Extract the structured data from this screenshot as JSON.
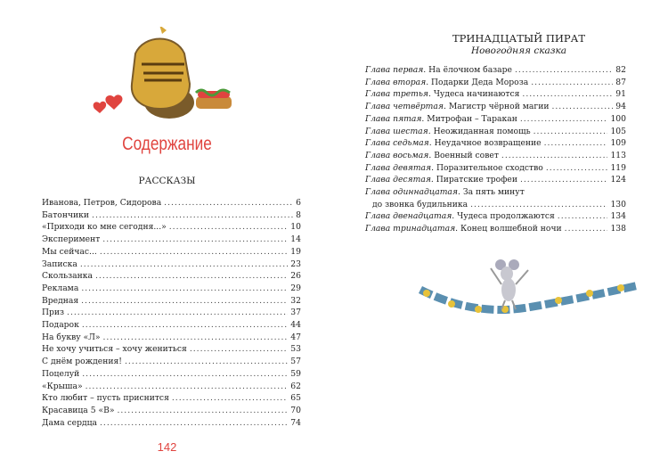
{
  "left_page": {
    "heading": "Содержание",
    "section_title": "РАССКАЗЫ",
    "page_number": "142",
    "entries": [
      {
        "title": "Иванова, Петров, Сидорова",
        "page": "6"
      },
      {
        "title": "Батончики",
        "page": "8"
      },
      {
        "title": "«Приходи ко мне сегодня...»",
        "page": "10"
      },
      {
        "title": "Эксперимент",
        "page": "14"
      },
      {
        "title": "Мы сейчас...",
        "page": "19"
      },
      {
        "title": "Записка",
        "page": "23"
      },
      {
        "title": "Скользанка",
        "page": "26"
      },
      {
        "title": "Реклама",
        "page": "29"
      },
      {
        "title": "Вредная",
        "page": "32"
      },
      {
        "title": "Приз",
        "page": "37"
      },
      {
        "title": "Подарок",
        "page": "44"
      },
      {
        "title": "На букву «Л»",
        "page": "47"
      },
      {
        "title": "Не хочу учиться – хочу жениться",
        "page": "53"
      },
      {
        "title": "С днём рождения!",
        "page": "57"
      },
      {
        "title": "Поцелуй",
        "page": "59"
      },
      {
        "title": "«Крыша»",
        "page": "62"
      },
      {
        "title": "Кто любит – пусть приснится",
        "page": "65"
      },
      {
        "title": "Красавица 5 «В»",
        "page": "70"
      },
      {
        "title": "Дама сердца",
        "page": "74"
      }
    ],
    "illustration": "knight-helmet-hearts-sandwich"
  },
  "right_page": {
    "title": "ТРИНАДЦАТЫЙ ПИРАТ",
    "subtitle": "Новогодняя сказка",
    "chapters": [
      {
        "label": "Глава первая.",
        "title": "На ёлочном базаре",
        "page": "82"
      },
      {
        "label": "Глава вторая.",
        "title": "Подарки Деда Мороза",
        "page": "87"
      },
      {
        "label": "Глава третья.",
        "title": "Чудеса начинаются",
        "page": "91"
      },
      {
        "label": "Глава четвёртая.",
        "title": "Магистр чёрной магии",
        "page": "94"
      },
      {
        "label": "Глава пятая.",
        "title": "Митрофан – Таракан",
        "page": "100"
      },
      {
        "label": "Глава шестая.",
        "title": "Неожиданная помощь",
        "page": "105"
      },
      {
        "label": "Глава седьмая.",
        "title": "Неудачное возвращение",
        "page": "109"
      },
      {
        "label": "Глава восьмая.",
        "title": "Военный совет",
        "page": "113"
      },
      {
        "label": "Глава девятая.",
        "title": "Поразительное сходство",
        "page": "119"
      },
      {
        "label": "Глава десятая.",
        "title": "Пиратские трофеи",
        "page": "124"
      },
      {
        "label": "Глава одиннадцатая.",
        "title": "За пять минут",
        "title_cont": "до звонка будильника",
        "page": "130"
      },
      {
        "label": "Глава двенадцатая.",
        "title": "Чудеса продолжаются",
        "page": "134"
      },
      {
        "label": "Глава тринадцатая.",
        "title": "Конец волшебной ночи",
        "page": "138"
      }
    ],
    "illustration": "mouse-on-garland"
  },
  "colors": {
    "accent_red": "#e0443f",
    "text": "#222222"
  }
}
